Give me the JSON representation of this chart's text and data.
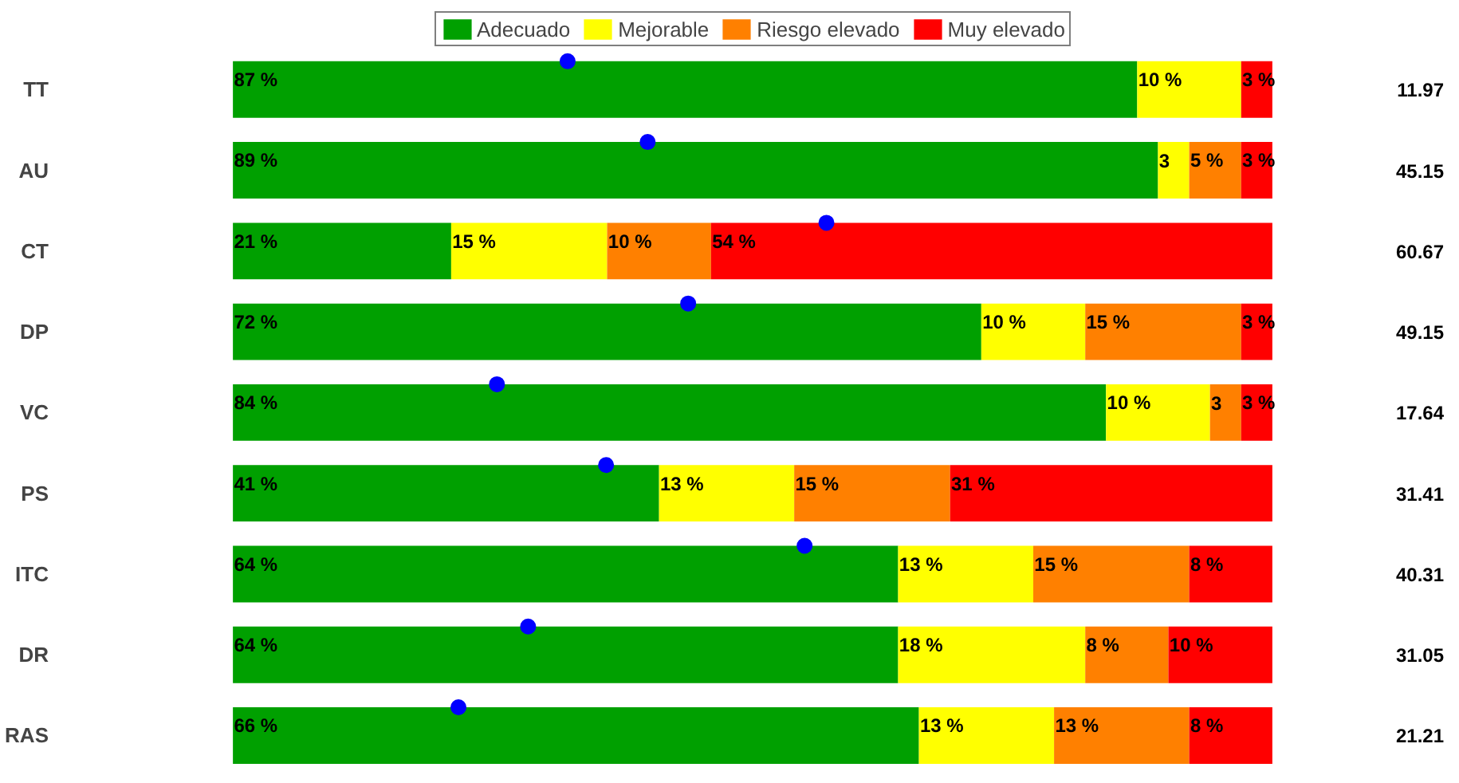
{
  "chart_data": {
    "type": "bar",
    "orientation": "horizontal",
    "stacked": true,
    "categories": [
      "TT",
      "AU",
      "CT",
      "DP",
      "VC",
      "PS",
      "ITC",
      "DR",
      "RAS"
    ],
    "series": [
      {
        "name": "Adecuado",
        "color": "#00a000",
        "values": [
          87,
          89,
          21,
          72,
          84,
          41,
          64,
          64,
          66
        ],
        "value_labels": [
          "87 %",
          "89 %",
          "21 %",
          "72 %",
          "84 %",
          "41 %",
          "64 %",
          "64 %",
          "66 %"
        ]
      },
      {
        "name": "Mejorable",
        "color": "#ffff00",
        "values": [
          10,
          3,
          15,
          10,
          10,
          13,
          13,
          18,
          13
        ],
        "value_labels": [
          "10 %",
          "3",
          "15 %",
          "10 %",
          "10 %",
          "13 %",
          "13 %",
          "18 %",
          "13 %"
        ]
      },
      {
        "name": "Riesgo elevado",
        "color": "#ff8000",
        "values": [
          0,
          5,
          10,
          15,
          3,
          15,
          15,
          8,
          13
        ],
        "value_labels": [
          null,
          "5 %",
          "10 %",
          "15 %",
          "3",
          "15 %",
          "15 %",
          "8 %",
          "13 %"
        ]
      },
      {
        "name": "Muy elevado",
        "color": "#ff0000",
        "values": [
          3,
          3,
          54,
          3,
          3,
          31,
          8,
          10,
          8
        ],
        "value_labels": [
          "3 %",
          "3 %",
          "54 %",
          "3 %",
          "3 %",
          "31 %",
          "8 %",
          "10 %",
          "8 %"
        ]
      },
      {
        "type": "scatter",
        "color": "#0000ff",
        "marker": "circle",
        "values": [
          32.2,
          39.9,
          57.1,
          43.8,
          25.4,
          35.9,
          55.0,
          28.4,
          21.7
        ]
      }
    ],
    "annotations": [
      "11.97",
      "45.15",
      "60.67",
      "49.15",
      "17.64",
      "31.41",
      "40.31",
      "31.05",
      "21.21"
    ],
    "legend": "top",
    "grid": false
  }
}
